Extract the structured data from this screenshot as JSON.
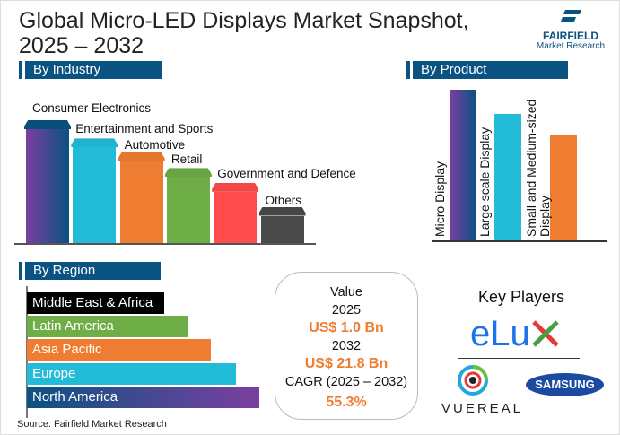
{
  "title_line1": "Global Micro-LED Displays Market Snapshot,",
  "title_line2": "2025 – 2032",
  "logo": {
    "name": "FAIRFIELD",
    "sub": "Market Research"
  },
  "sections": {
    "industry": "By Industry",
    "product": "By Product",
    "region": "By Region"
  },
  "chart_data": [
    {
      "type": "bar",
      "title": "By Industry",
      "categories": [
        "Consumer Electronics",
        "Entertainment and Sports",
        "Automotive",
        "Retail",
        "Government and Defence",
        "Others"
      ],
      "values": [
        100,
        84,
        72,
        58,
        45,
        24
      ],
      "colors": [
        "#4b4a9a",
        "#22bcd9",
        "#ef7d31",
        "#6fad47",
        "#ff4b4b",
        "#4a4a4a"
      ]
    },
    {
      "type": "bar",
      "title": "By Product",
      "categories": [
        "Micro Display",
        "Large scale Display",
        "Small and Medium-sized Display"
      ],
      "values": [
        100,
        84,
        70
      ],
      "colors": [
        "#4b4a9a",
        "#22bcd9",
        "#ef7d31"
      ]
    },
    {
      "type": "bar",
      "orientation": "horizontal",
      "title": "By Region",
      "categories": [
        "Middle East & Africa",
        "Latin America",
        "Asia Pacific",
        "Europe",
        "North America"
      ],
      "values": [
        59,
        69,
        79,
        90,
        100
      ],
      "colors": [
        "#000000",
        "#6fad47",
        "#ef7d31",
        "#22bcd9",
        "#1e4f86"
      ]
    }
  ],
  "value_box": {
    "label": "Value",
    "year1": "2025",
    "value1": "US$ 1.0 Bn",
    "year2": "2032",
    "value2": "US$ 21.8 Bn",
    "cagr_label": "CAGR (2025 – 2032)",
    "cagr": "55.3%"
  },
  "key_players": {
    "title": "Key Players",
    "elux": "eLu",
    "vuereal": "VUEREAL",
    "samsung": "SAMSUNG"
  },
  "source": "Source: Fairfield Market Research"
}
